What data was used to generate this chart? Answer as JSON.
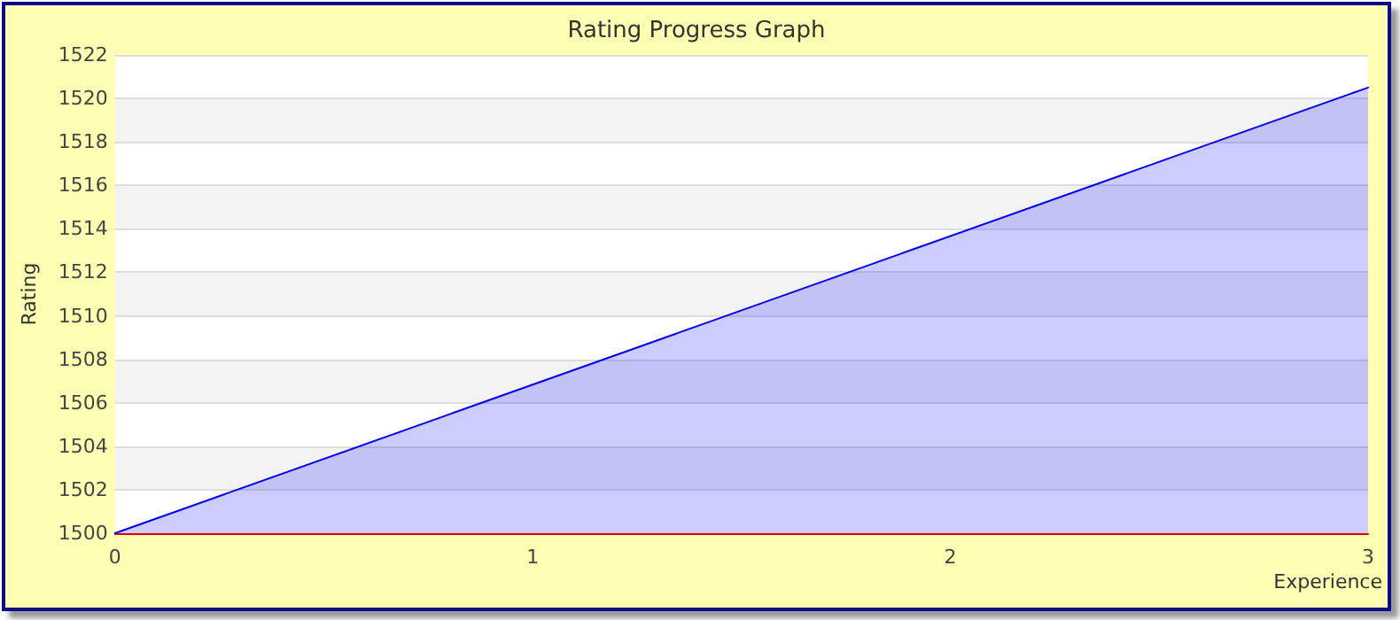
{
  "chart_data": {
    "type": "area",
    "title": "Rating Progress Graph",
    "xlabel": "Experience",
    "ylabel": "Rating",
    "x": [
      0,
      3
    ],
    "series": [
      {
        "color": "#0000ff",
        "values": [
          1500,
          1520.5
        ]
      }
    ],
    "xlim": [
      0,
      3
    ],
    "xticks": [
      0,
      1,
      2,
      3
    ],
    "ylim": [
      1500,
      1522
    ],
    "yticks": [
      1500,
      1502,
      1504,
      1506,
      1508,
      1510,
      1512,
      1514,
      1516,
      1518,
      1520,
      1522
    ],
    "grid": "y",
    "marker": "none",
    "line_style": "solid"
  }
}
